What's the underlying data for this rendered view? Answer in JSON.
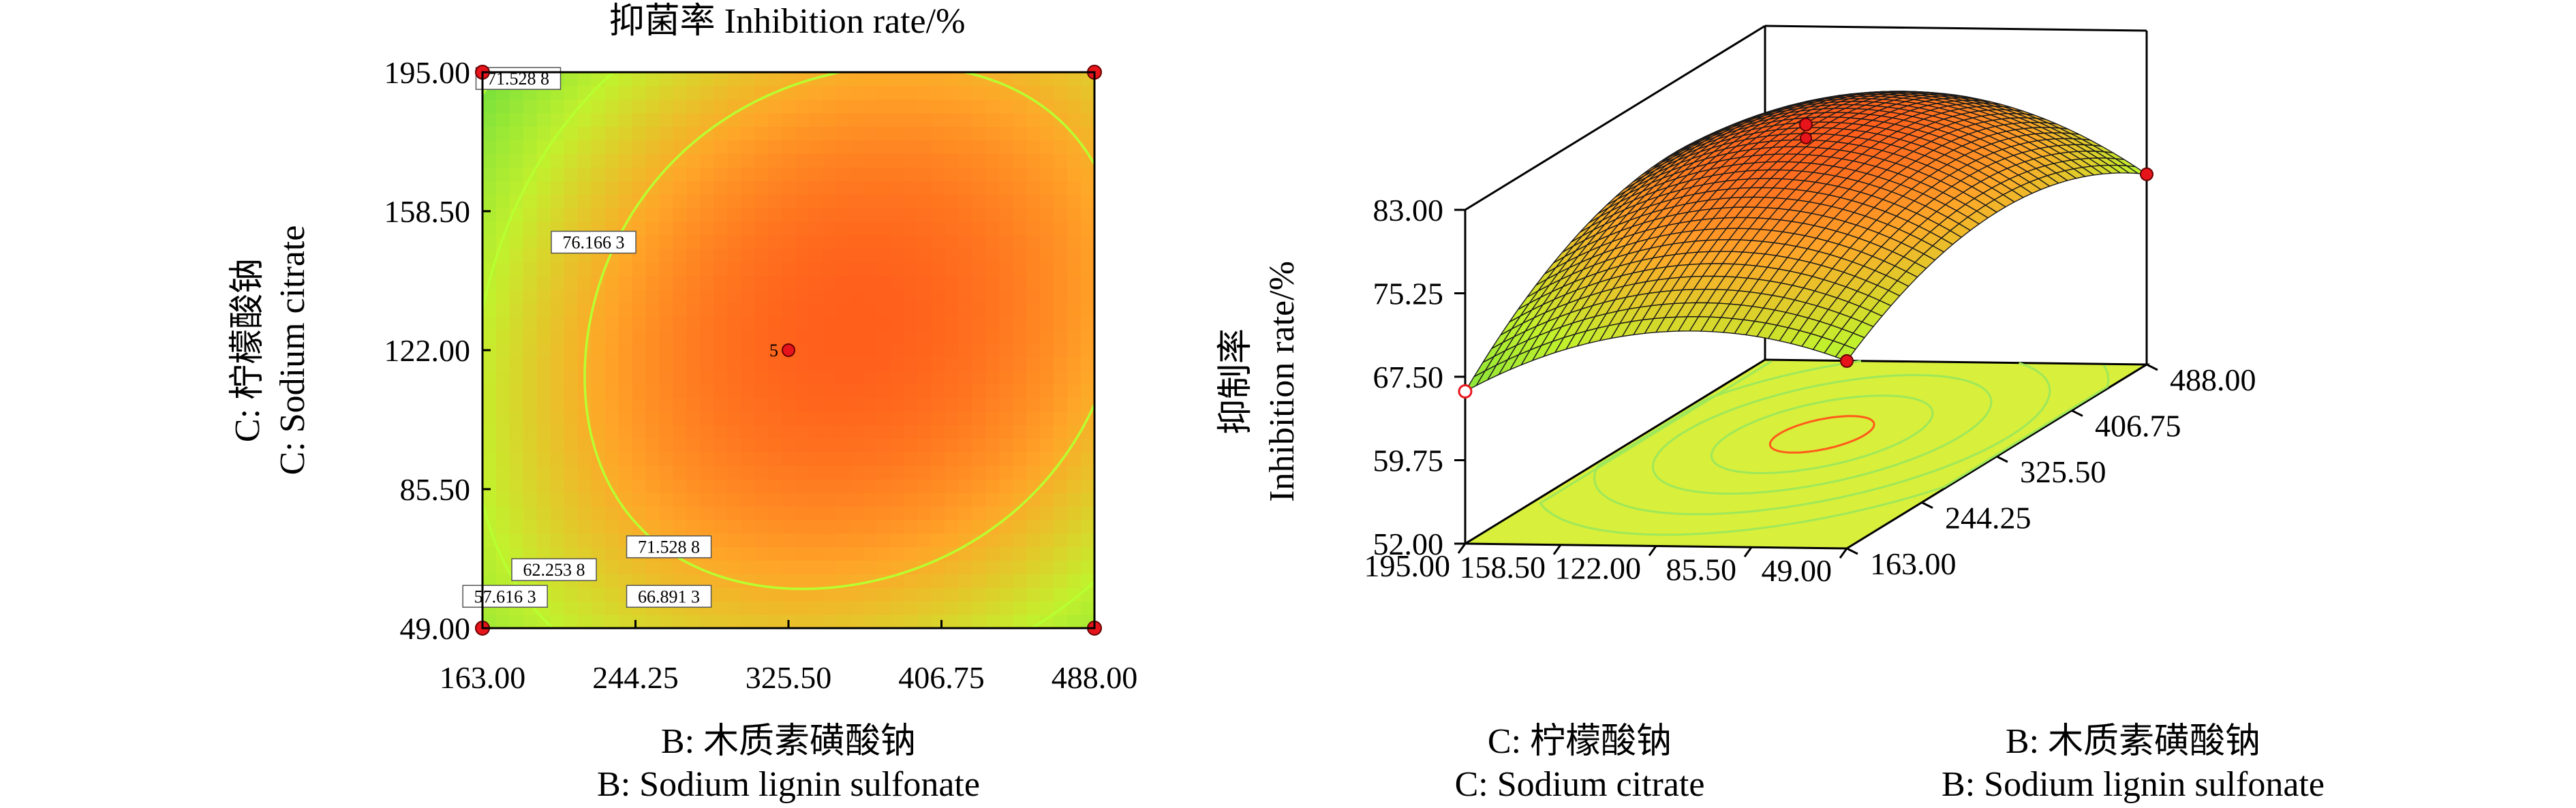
{
  "chart_data": [
    {
      "type": "heatmap",
      "subtype": "contour",
      "title": "抑菌率 Inhibition rate/%",
      "xlabel": [
        "B: 木质素磺酸钠",
        "B: Sodium lignin sulfonate"
      ],
      "ylabel": [
        "C: 柠檬酸钠",
        "C: Sodium citrate"
      ],
      "xlim": [
        163.0,
        488.0
      ],
      "ylim": [
        49.0,
        195.0
      ],
      "xticks": [
        "163.00",
        "244.25",
        "325.50",
        "406.75",
        "488.00"
      ],
      "yticks": [
        "49.00",
        "85.50",
        "122.00",
        "158.50",
        "195.00"
      ],
      "contours": [
        {
          "label": "57.616 3",
          "value": 57.6163
        },
        {
          "label": "62.253 8",
          "value": 62.2538
        },
        {
          "label": "66.891 3",
          "value": 66.8913
        },
        {
          "label": "71.528 8",
          "value": 71.5288
        },
        {
          "label": "76.166 3",
          "value": 76.1663
        }
      ],
      "center_point": {
        "x": 325.5,
        "y": 122.0,
        "label": "5"
      },
      "design_points": [
        {
          "x": 163.0,
          "y": 195.0
        },
        {
          "x": 488.0,
          "y": 195.0
        },
        {
          "x": 163.0,
          "y": 49.0
        },
        {
          "x": 488.0,
          "y": 49.0
        }
      ],
      "colors": {
        "low": "#1f3fd8",
        "mid": "#8be82a",
        "high": "#ff3b16",
        "contour_line": "#b8ff30",
        "point": "#e8141c"
      }
    },
    {
      "type": "surface3d",
      "zlabel": [
        "抑制率",
        "Inhibition rate/%"
      ],
      "xlabel": [
        "B: 木质素磺酸钠",
        "B: Sodium lignin sulfonate"
      ],
      "ylabel": [
        "C: 柠檬酸钠",
        "C: Sodium citrate"
      ],
      "zlim": [
        52.0,
        83.0
      ],
      "zticks": [
        "52.00",
        "59.75",
        "67.50",
        "75.25",
        "83.00"
      ],
      "xticks": [
        "163.00",
        "244.25",
        "325.50",
        "406.75",
        "488.00"
      ],
      "yticks": [
        "49.00",
        "85.50",
        "122.00",
        "158.50",
        "195.00"
      ],
      "z_min": 52.0,
      "z_max": 83.0,
      "colors": {
        "floor": "#d8ef3c",
        "floor_contour": "#9ee85a",
        "floor_contour_center": "#ff5a1a",
        "point": "#e8141c"
      }
    }
  ]
}
